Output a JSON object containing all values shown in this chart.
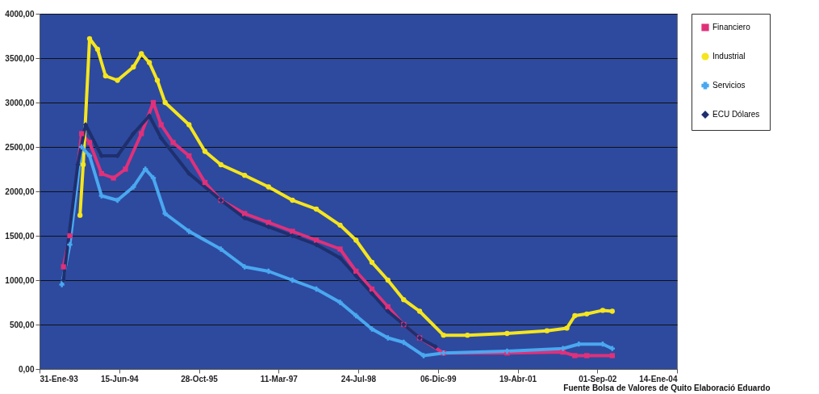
{
  "chart_data": {
    "type": "line",
    "annotations": [
      "Fuente Bolsa de Valores de Quito Elaboració Eduardo"
    ],
    "xlim": [
      "1993-01-31",
      "2004-01-14"
    ],
    "xticks": [
      {
        "value": "1993-01-31",
        "label": "31-Ene-93"
      },
      {
        "value": "1994-06-15",
        "label": "15-Jun-94"
      },
      {
        "value": "1995-10-28",
        "label": "28-Oct-95"
      },
      {
        "value": "1997-03-11",
        "label": "11-Mar-97"
      },
      {
        "value": "1998-07-24",
        "label": "24-Jul-98"
      },
      {
        "value": "1999-12-06",
        "label": "06-Dic-99"
      },
      {
        "value": "2001-04-19",
        "label": "19-Abr-01"
      },
      {
        "value": "2002-09-01",
        "label": "01-Sep-02"
      },
      {
        "value": "2004-01-14",
        "label": "14-Ene-04"
      }
    ],
    "ylim": [
      0,
      4000
    ],
    "yticks": [
      {
        "value": 0,
        "label": "0,00"
      },
      {
        "value": 500,
        "label": "500,00"
      },
      {
        "value": 1000,
        "label": "1000,00"
      },
      {
        "value": 1500,
        "label": "1500,00"
      },
      {
        "value": 2000,
        "label": "2000,00"
      },
      {
        "value": 2500,
        "label": "2500,00"
      },
      {
        "value": 3000,
        "label": "3000,00"
      },
      {
        "value": 3500,
        "label": "3500,00"
      },
      {
        "value": 4000,
        "label": "4000,00"
      }
    ],
    "grid": "y",
    "legend": "right",
    "series": [
      {
        "name": "Financiero",
        "color": "#e0307a",
        "marker": "square",
        "x": [
          "1993-06-30",
          "1993-08-09",
          "1993-10-22",
          "1993-12-11",
          "1994-02-24",
          "1994-05-10",
          "1994-07-24",
          "1994-11-01",
          "1995-01-15",
          "1995-03-05",
          "1995-05-19",
          "1995-08-27",
          "1995-12-05",
          "1996-03-14",
          "1996-08-10",
          "1997-01-07",
          "1997-06-06",
          "1997-11-03",
          "1998-04-01",
          "1998-07-10",
          "1998-10-18",
          "1999-01-26",
          "1999-05-05",
          "1999-08-13",
          "2000-01-10",
          "2001-02-12",
          "2002-01-28",
          "2002-04-13",
          "2002-06-27",
          "2002-12-04"
        ],
        "values": [
          1150,
          1500,
          2650,
          2550,
          2200,
          2150,
          2250,
          2650,
          3000,
          2750,
          2550,
          2400,
          2100,
          1900,
          1750,
          1650,
          1550,
          1450,
          1350,
          1100,
          900,
          700,
          500,
          350,
          180,
          180,
          190,
          150,
          150,
          150
        ]
      },
      {
        "name": "Industrial",
        "color": "#f5e51e",
        "marker": "circle",
        "x": [
          "1993-10-12",
          "1993-11-01",
          "1993-12-11",
          "1994-01-30",
          "1994-03-21",
          "1994-06-04",
          "1994-09-12",
          "1994-11-01",
          "1994-12-21",
          "1995-02-09",
          "1995-03-30",
          "1995-08-27",
          "1995-12-05",
          "1996-03-14",
          "1996-08-10",
          "1997-01-07",
          "1997-06-06",
          "1997-11-03",
          "1998-04-01",
          "1998-07-10",
          "1998-10-18",
          "1999-01-26",
          "1999-05-05",
          "1999-08-13",
          "2000-01-10",
          "2000-06-08",
          "2001-02-12",
          "2001-10-20",
          "2002-02-22",
          "2002-04-13",
          "2002-06-27",
          "2002-10-05",
          "2002-12-04"
        ],
        "values": [
          1730,
          2300,
          3720,
          3600,
          3300,
          3250,
          3400,
          3550,
          3450,
          3250,
          3000,
          2750,
          2450,
          2300,
          2180,
          2050,
          1900,
          1800,
          1620,
          1450,
          1200,
          1000,
          780,
          650,
          380,
          380,
          400,
          430,
          460,
          600,
          620,
          660,
          650
        ]
      },
      {
        "name": "Servicios",
        "color": "#4aa8f0",
        "marker": "cross",
        "x": [
          "1993-06-20",
          "1993-08-09",
          "1993-10-22",
          "1993-12-11",
          "1994-02-24",
          "1994-06-04",
          "1994-09-12",
          "1994-11-26",
          "1995-01-15",
          "1995-03-30",
          "1995-08-27",
          "1996-03-14",
          "1996-08-10",
          "1997-01-07",
          "1997-06-06",
          "1997-11-03",
          "1998-04-01",
          "1998-07-10",
          "1998-10-18",
          "1999-01-26",
          "1999-05-05",
          "1999-09-07",
          "2000-01-10",
          "2001-02-12",
          "2002-01-28",
          "2002-05-08",
          "2002-10-05",
          "2002-12-04"
        ],
        "values": [
          950,
          1400,
          2500,
          2400,
          1950,
          1900,
          2050,
          2250,
          2150,
          1750,
          1550,
          1350,
          1150,
          1100,
          1000,
          900,
          750,
          600,
          450,
          350,
          300,
          150,
          180,
          200,
          230,
          280,
          280,
          230
        ]
      },
      {
        "name": "ECU Dólares",
        "color": "#1f2f6e",
        "marker": "diamond",
        "x": [
          "1993-06-30",
          "1993-09-28",
          "1993-11-16",
          "1994-02-24",
          "1994-06-04",
          "1994-09-12",
          "1994-12-21",
          "1995-03-05",
          "1995-08-27",
          "1996-03-14",
          "1996-08-10",
          "1997-01-07",
          "1997-06-06",
          "1997-11-03",
          "1998-04-01",
          "1998-07-10",
          "1998-10-18",
          "1999-01-26",
          "1999-05-05",
          "1999-08-13",
          "1999-11-21"
        ],
        "values": [
          1000,
          2300,
          2750,
          2400,
          2400,
          2650,
          2850,
          2600,
          2200,
          1900,
          1700,
          1600,
          1500,
          1400,
          1250,
          1050,
          850,
          650,
          500,
          350,
          250
        ]
      }
    ]
  }
}
